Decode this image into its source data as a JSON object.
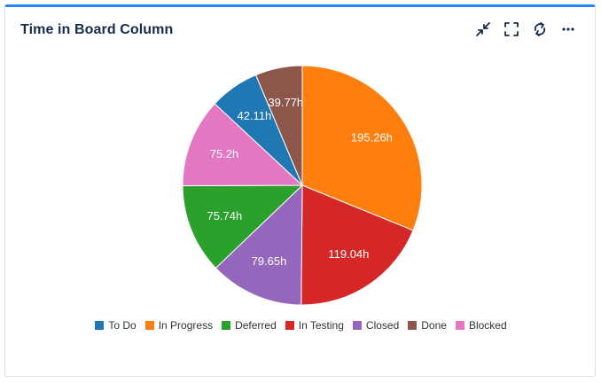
{
  "widget": {
    "title": "Time in Board Column",
    "icons": {
      "collapse": "collapse-icon",
      "fullscreen": "fullscreen-icon",
      "refresh": "refresh-icon",
      "more": "more-icon"
    }
  },
  "chart_data": {
    "type": "pie",
    "title": "Time in Board Column",
    "legend_position": "bottom",
    "slices": [
      {
        "name": "In Progress",
        "value": 195.26,
        "label": "195.26h",
        "color": "#ff7f0e"
      },
      {
        "name": "In Testing",
        "value": 119.04,
        "label": "119.04h",
        "color": "#d62728"
      },
      {
        "name": "Closed",
        "value": 79.65,
        "label": "79.65h",
        "color": "#9467bd"
      },
      {
        "name": "Deferred",
        "value": 75.74,
        "label": "75.74h",
        "color": "#2ca02c"
      },
      {
        "name": "Blocked",
        "value": 75.2,
        "label": "75.2h",
        "color": "#e377c2"
      },
      {
        "name": "To Do",
        "value": 42.11,
        "label": "42.11h",
        "color": "#1f77b4"
      },
      {
        "name": "Done",
        "value": 39.77,
        "label": "39.77h",
        "color": "#8c564b"
      }
    ],
    "legend": [
      {
        "name": "To Do",
        "color": "#1f77b4"
      },
      {
        "name": "In Progress",
        "color": "#ff7f0e"
      },
      {
        "name": "Deferred",
        "color": "#2ca02c"
      },
      {
        "name": "In Testing",
        "color": "#d62728"
      },
      {
        "name": "Closed",
        "color": "#9467bd"
      },
      {
        "name": "Done",
        "color": "#8c564b"
      },
      {
        "name": "Blocked",
        "color": "#e377c2"
      }
    ]
  }
}
